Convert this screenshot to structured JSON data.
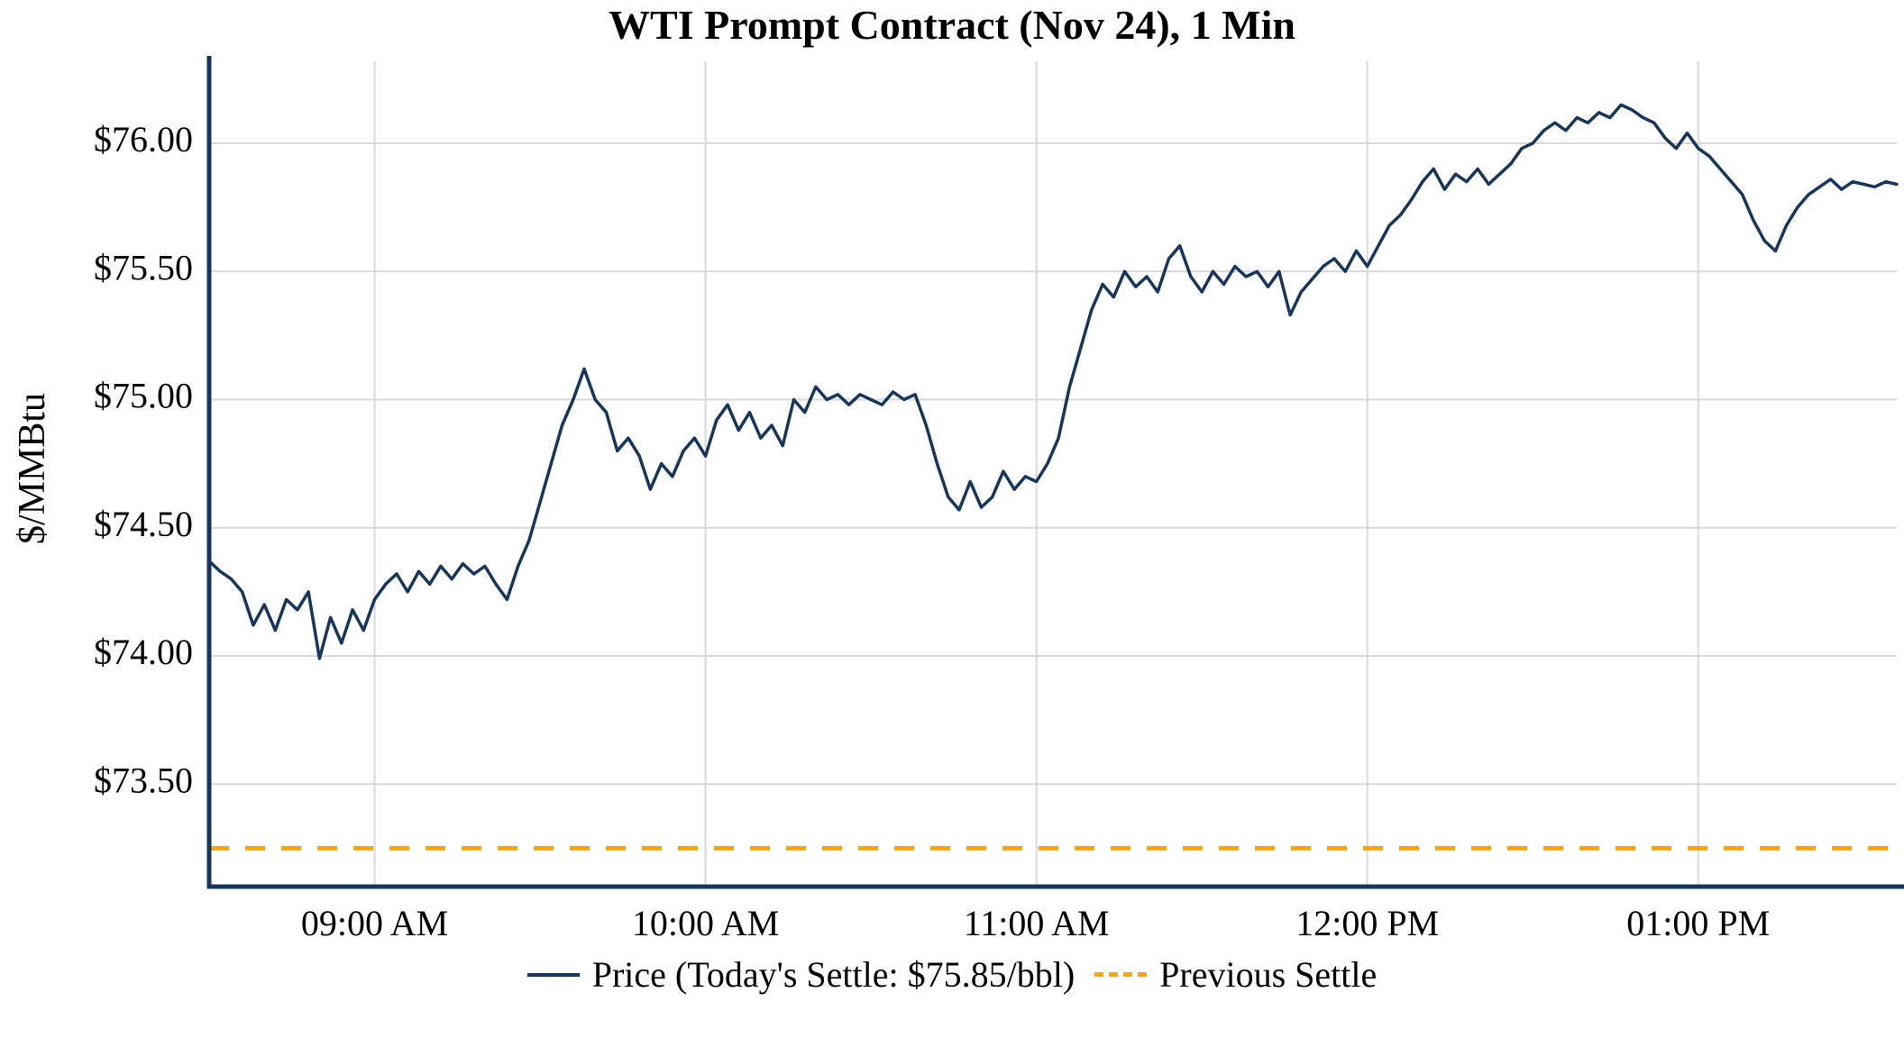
{
  "title": "WTI Prompt Contract (Nov 24), 1 Min",
  "ylabel": "$/MMBtu",
  "legend": {
    "price_label": "Price (Today's Settle: $75.85/bbl)",
    "prev_settle_label": "Previous Settle"
  },
  "colors": {
    "price": "#17365d",
    "prev_settle": "#FFA500",
    "grid": "#d9d9d9",
    "spine": "#17365d",
    "background": "#ffffff"
  },
  "chart_data": {
    "type": "line",
    "title": "WTI Prompt Contract (Nov 24), 1 Min",
    "xlabel": "",
    "ylabel": "$/MMBtu",
    "x_unit": "minutes-of-day",
    "xlim": [
      510,
      816
    ],
    "ylim": [
      73.1,
      76.32
    ],
    "grid": true,
    "legend_position": "bottom",
    "x_ticks": [
      {
        "value": 540,
        "label": "09:00 AM"
      },
      {
        "value": 600,
        "label": "10:00 AM"
      },
      {
        "value": 660,
        "label": "11:00 AM"
      },
      {
        "value": 720,
        "label": "12:00 PM"
      },
      {
        "value": 780,
        "label": "01:00 PM"
      }
    ],
    "y_ticks": [
      {
        "value": 73.5,
        "label": "$73.50"
      },
      {
        "value": 74.0,
        "label": "$74.00"
      },
      {
        "value": 74.5,
        "label": "$74.50"
      },
      {
        "value": 75.0,
        "label": "$75.00"
      },
      {
        "value": 75.5,
        "label": "$75.50"
      },
      {
        "value": 76.0,
        "label": "$76.00"
      }
    ],
    "previous_settle": 73.25,
    "todays_settle": 75.85,
    "series": [
      {
        "name": "Price",
        "points": [
          [
            510,
            74.37
          ],
          [
            512,
            74.33
          ],
          [
            514,
            74.3
          ],
          [
            516,
            74.25
          ],
          [
            518,
            74.12
          ],
          [
            520,
            74.2
          ],
          [
            522,
            74.1
          ],
          [
            524,
            74.22
          ],
          [
            526,
            74.18
          ],
          [
            528,
            74.25
          ],
          [
            530,
            73.99
          ],
          [
            532,
            74.15
          ],
          [
            534,
            74.05
          ],
          [
            536,
            74.18
          ],
          [
            538,
            74.1
          ],
          [
            540,
            74.22
          ],
          [
            542,
            74.28
          ],
          [
            544,
            74.32
          ],
          [
            546,
            74.25
          ],
          [
            548,
            74.33
          ],
          [
            550,
            74.28
          ],
          [
            552,
            74.35
          ],
          [
            554,
            74.3
          ],
          [
            556,
            74.36
          ],
          [
            558,
            74.32
          ],
          [
            560,
            74.35
          ],
          [
            562,
            74.28
          ],
          [
            564,
            74.22
          ],
          [
            566,
            74.35
          ],
          [
            568,
            74.45
          ],
          [
            570,
            74.6
          ],
          [
            572,
            74.75
          ],
          [
            574,
            74.9
          ],
          [
            576,
            75.0
          ],
          [
            578,
            75.12
          ],
          [
            580,
            75.0
          ],
          [
            582,
            74.95
          ],
          [
            584,
            74.8
          ],
          [
            586,
            74.85
          ],
          [
            588,
            74.78
          ],
          [
            590,
            74.65
          ],
          [
            592,
            74.75
          ],
          [
            594,
            74.7
          ],
          [
            596,
            74.8
          ],
          [
            598,
            74.85
          ],
          [
            600,
            74.78
          ],
          [
            602,
            74.92
          ],
          [
            604,
            74.98
          ],
          [
            606,
            74.88
          ],
          [
            608,
            74.95
          ],
          [
            610,
            74.85
          ],
          [
            612,
            74.9
          ],
          [
            614,
            74.82
          ],
          [
            616,
            75.0
          ],
          [
            618,
            74.95
          ],
          [
            620,
            75.05
          ],
          [
            622,
            75.0
          ],
          [
            624,
            75.02
          ],
          [
            626,
            74.98
          ],
          [
            628,
            75.02
          ],
          [
            630,
            75.0
          ],
          [
            632,
            74.98
          ],
          [
            634,
            75.03
          ],
          [
            636,
            75.0
          ],
          [
            638,
            75.02
          ],
          [
            640,
            74.9
          ],
          [
            642,
            74.75
          ],
          [
            644,
            74.62
          ],
          [
            646,
            74.57
          ],
          [
            648,
            74.68
          ],
          [
            650,
            74.58
          ],
          [
            652,
            74.62
          ],
          [
            654,
            74.72
          ],
          [
            656,
            74.65
          ],
          [
            658,
            74.7
          ],
          [
            660,
            74.68
          ],
          [
            662,
            74.75
          ],
          [
            664,
            74.85
          ],
          [
            666,
            75.05
          ],
          [
            668,
            75.2
          ],
          [
            670,
            75.35
          ],
          [
            672,
            75.45
          ],
          [
            674,
            75.4
          ],
          [
            676,
            75.5
          ],
          [
            678,
            75.44
          ],
          [
            680,
            75.48
          ],
          [
            682,
            75.42
          ],
          [
            684,
            75.55
          ],
          [
            686,
            75.6
          ],
          [
            688,
            75.48
          ],
          [
            690,
            75.42
          ],
          [
            692,
            75.5
          ],
          [
            694,
            75.45
          ],
          [
            696,
            75.52
          ],
          [
            698,
            75.48
          ],
          [
            700,
            75.5
          ],
          [
            702,
            75.44
          ],
          [
            704,
            75.5
          ],
          [
            706,
            75.33
          ],
          [
            708,
            75.42
          ],
          [
            710,
            75.47
          ],
          [
            712,
            75.52
          ],
          [
            714,
            75.55
          ],
          [
            716,
            75.5
          ],
          [
            718,
            75.58
          ],
          [
            720,
            75.52
          ],
          [
            722,
            75.6
          ],
          [
            724,
            75.68
          ],
          [
            726,
            75.72
          ],
          [
            728,
            75.78
          ],
          [
            730,
            75.85
          ],
          [
            732,
            75.9
          ],
          [
            734,
            75.82
          ],
          [
            736,
            75.88
          ],
          [
            738,
            75.85
          ],
          [
            740,
            75.9
          ],
          [
            742,
            75.84
          ],
          [
            744,
            75.88
          ],
          [
            746,
            75.92
          ],
          [
            748,
            75.98
          ],
          [
            750,
            76.0
          ],
          [
            752,
            76.05
          ],
          [
            754,
            76.08
          ],
          [
            756,
            76.05
          ],
          [
            758,
            76.1
          ],
          [
            760,
            76.08
          ],
          [
            762,
            76.12
          ],
          [
            764,
            76.1
          ],
          [
            766,
            76.15
          ],
          [
            768,
            76.13
          ],
          [
            770,
            76.1
          ],
          [
            772,
            76.08
          ],
          [
            774,
            76.02
          ],
          [
            776,
            75.98
          ],
          [
            778,
            76.04
          ],
          [
            780,
            75.98
          ],
          [
            782,
            75.95
          ],
          [
            784,
            75.9
          ],
          [
            786,
            75.85
          ],
          [
            788,
            75.8
          ],
          [
            790,
            75.7
          ],
          [
            792,
            75.62
          ],
          [
            794,
            75.58
          ],
          [
            796,
            75.68
          ],
          [
            798,
            75.75
          ],
          [
            800,
            75.8
          ],
          [
            802,
            75.83
          ],
          [
            804,
            75.86
          ],
          [
            806,
            75.82
          ],
          [
            808,
            75.85
          ],
          [
            810,
            75.84
          ],
          [
            812,
            75.83
          ],
          [
            814,
            75.85
          ],
          [
            816,
            75.84
          ]
        ]
      }
    ]
  }
}
